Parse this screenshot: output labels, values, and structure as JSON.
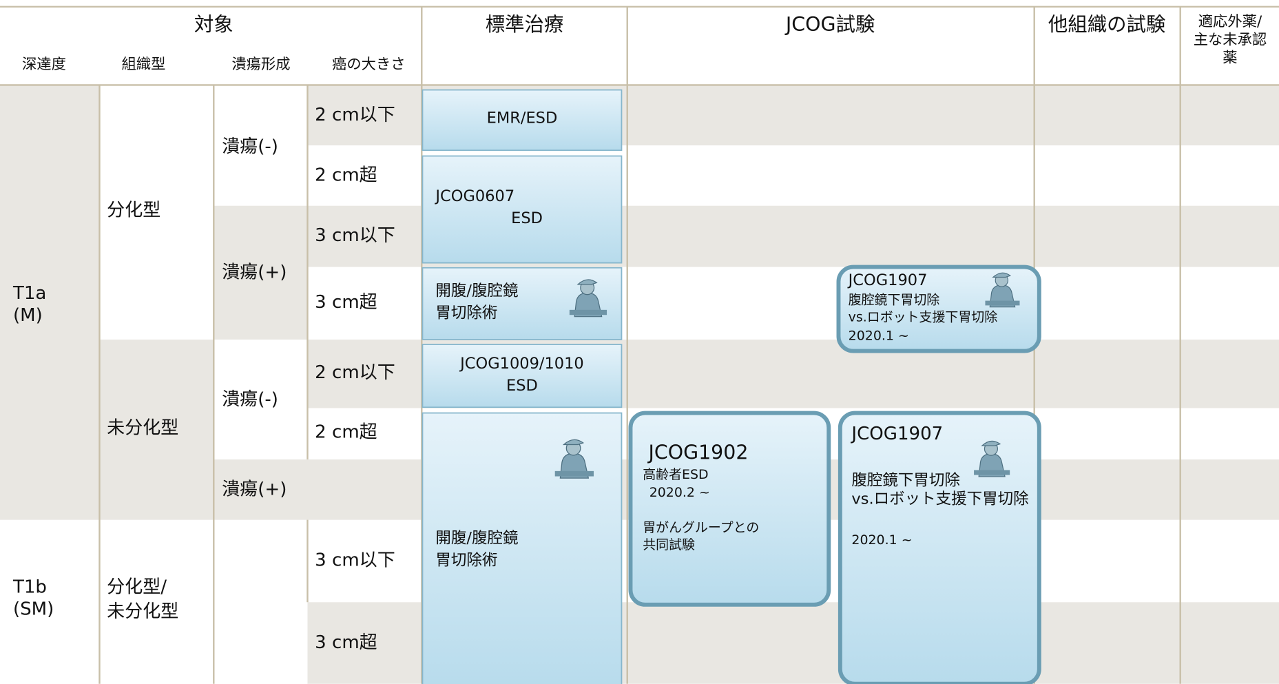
{
  "header": {
    "target": "対象",
    "depth": "深達度",
    "histology": "組織型",
    "ulcer": "潰瘍形成",
    "size": "癌の大きさ",
    "standard": "標準治療",
    "jcog": "JCOG試験",
    "other": "他組織の試験",
    "offlabel": [
      "適応外薬/",
      "主な未承認",
      "薬"
    ]
  },
  "depth": [
    [
      "T1a",
      "(M)"
    ],
    [
      "T1b",
      "(SM)"
    ]
  ],
  "histology": [
    [
      "分化型"
    ],
    [
      "未分化型"
    ],
    [
      "分化型/",
      "未分化型"
    ]
  ],
  "ulcer": [
    "潰瘍(-)",
    "潰瘍(+)",
    "潰瘍(-)",
    "潰瘍(+)"
  ],
  "size": [
    "2 cm以下",
    "2 cm超",
    "3 cm以下",
    "3 cm超",
    "2 cm以下",
    "2 cm超",
    "3 cm以下",
    "3 cm超"
  ],
  "standard": [
    [
      "EMR/ESD"
    ],
    [
      "JCOG0607",
      "ESD"
    ],
    [
      "開腹/腹腔鏡",
      "胃切除術"
    ],
    [
      "JCOG1009/1010",
      "ESD"
    ],
    [
      "開腹/腹腔鏡",
      "胃切除術"
    ]
  ],
  "trials": [
    [
      "JCOG1907",
      "腹腔鏡下胃切除",
      "vs.ロボット支援下胃切除",
      "2020.1 ~"
    ],
    [
      "JCOG1902",
      "高齢者ESD",
      "2020.2 ~",
      "胃がんグループとの",
      "共同試験"
    ],
    [
      "JCOG1907",
      "腹腔鏡下胃切除",
      "vs.ロボット支援下胃切除",
      "2020.1 ~"
    ]
  ]
}
